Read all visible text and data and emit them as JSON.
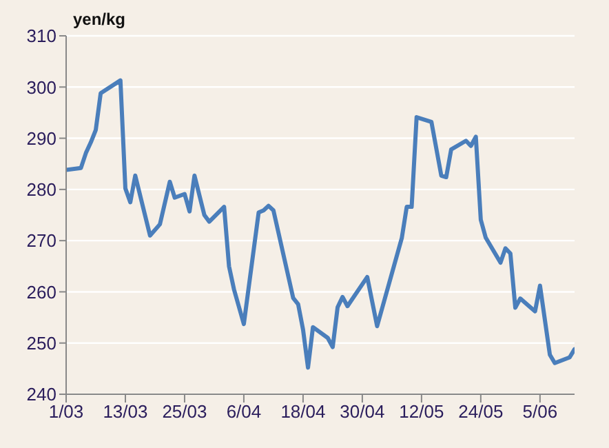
{
  "chart_data": {
    "type": "line",
    "ylabel": "yen/kg",
    "x": [
      "--03-01",
      "--03-04",
      "--03-05",
      "--03-06",
      "--03-07",
      "--03-08",
      "--03-12",
      "--03-13",
      "--03-14",
      "--03-15",
      "--03-18",
      "--03-20",
      "--03-22",
      "--03-23",
      "--03-25",
      "--03-26",
      "--03-27",
      "--03-29",
      "--03-30",
      "--04-02",
      "--04-03",
      "--04-04",
      "--04-06",
      "--04-09",
      "--04-10",
      "--04-11",
      "--04-12",
      "--04-16",
      "--04-17",
      "--04-18",
      "--04-19",
      "--04-20",
      "--04-23",
      "--04-24",
      "--04-25",
      "--04-26",
      "--04-27",
      "--05-01",
      "--05-03",
      "--05-08",
      "--05-09",
      "--05-10",
      "--05-11",
      "--05-14",
      "--05-16",
      "--05-17",
      "--05-18",
      "--05-21",
      "--05-22",
      "--05-23",
      "--05-24",
      "--05-25",
      "--05-28",
      "--05-29",
      "--05-30",
      "--05-31",
      "--06-01",
      "--06-04",
      "--06-05",
      "--06-07",
      "--06-08",
      "--06-11",
      "--06-12"
    ],
    "series": [
      {
        "color": "#4a7ebb",
        "values": [
          283.8,
          284.2,
          287.1,
          289.2,
          291.6,
          298.8,
          301.3,
          280.2,
          277.5,
          282.7,
          271,
          273.2,
          281.5,
          278.4,
          279.1,
          275.7,
          282.7,
          275,
          273.7,
          276.6,
          265,
          260.5,
          253.7,
          275.5,
          275.9,
          276.8,
          275.9,
          258.8,
          257.6,
          252.6,
          245.2,
          253.1,
          251,
          249.2,
          257,
          259,
          257.2,
          262.9,
          253.3,
          270.5,
          276.6,
          276.6,
          294.1,
          293.2,
          282.7,
          282.4,
          287.8,
          289.5,
          288.5,
          290.3,
          274.1,
          270.6,
          265.7,
          268.5,
          267.5,
          256.9,
          258.7,
          256.2,
          261.2,
          247.7,
          246.1,
          247.2,
          248.8
        ]
      }
    ],
    "xlim": [
      "--03-01",
      "--06-12"
    ],
    "xticks": [
      {
        "value": "--03-01",
        "label": "1/03"
      },
      {
        "value": "--03-13",
        "label": "13/03"
      },
      {
        "value": "--03-25",
        "label": "25/03"
      },
      {
        "value": "--04-06",
        "label": "6/04"
      },
      {
        "value": "--04-18",
        "label": "18/04"
      },
      {
        "value": "--04-30",
        "label": "30/04"
      },
      {
        "value": "--05-12",
        "label": "12/05"
      },
      {
        "value": "--05-24",
        "label": "24/05"
      },
      {
        "value": "--06-05",
        "label": "5/06"
      }
    ],
    "ylim": [
      240,
      310
    ],
    "yticks": [
      240,
      250,
      260,
      270,
      280,
      290,
      300,
      310
    ],
    "grid": "y",
    "legend": false,
    "marker": "none",
    "line_style": "solid"
  }
}
